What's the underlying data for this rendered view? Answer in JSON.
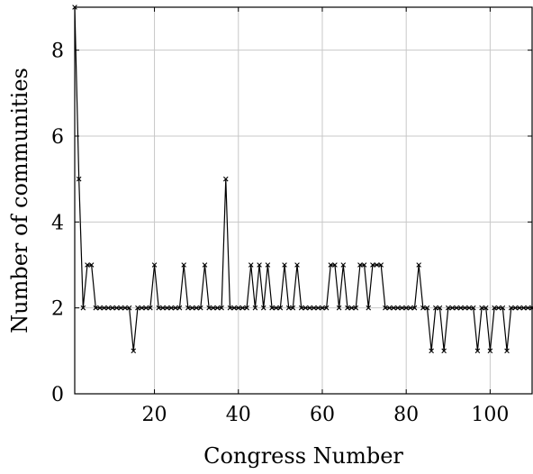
{
  "chart_data": {
    "type": "line",
    "title": "",
    "xlabel": "Congress Number",
    "ylabel": "Number of communities",
    "xlim": [
      1,
      110
    ],
    "ylim": [
      0,
      9
    ],
    "xticks": [
      20,
      40,
      60,
      80,
      100
    ],
    "yticks": [
      0,
      2,
      4,
      6,
      8
    ],
    "grid": true,
    "marker": "x",
    "x": [
      1,
      2,
      3,
      4,
      5,
      6,
      7,
      8,
      9,
      10,
      11,
      12,
      13,
      14,
      15,
      16,
      17,
      18,
      19,
      20,
      21,
      22,
      23,
      24,
      25,
      26,
      27,
      28,
      29,
      30,
      31,
      32,
      33,
      34,
      35,
      36,
      37,
      38,
      39,
      40,
      41,
      42,
      43,
      44,
      45,
      46,
      47,
      48,
      49,
      50,
      51,
      52,
      53,
      54,
      55,
      56,
      57,
      58,
      59,
      60,
      61,
      62,
      63,
      64,
      65,
      66,
      67,
      68,
      69,
      70,
      71,
      72,
      73,
      74,
      75,
      76,
      77,
      78,
      79,
      80,
      81,
      82,
      83,
      84,
      85,
      86,
      87,
      88,
      89,
      90,
      91,
      92,
      93,
      94,
      95,
      96,
      97,
      98,
      99,
      100,
      101,
      102,
      103,
      104,
      105,
      106,
      107,
      108,
      109,
      110
    ],
    "series": [
      {
        "values": [
          9,
          5,
          2,
          3,
          3,
          2,
          2,
          2,
          2,
          2,
          2,
          2,
          2,
          2,
          1,
          2,
          2,
          2,
          2,
          3,
          2,
          2,
          2,
          2,
          2,
          2,
          3,
          2,
          2,
          2,
          2,
          3,
          2,
          2,
          2,
          2,
          5,
          2,
          2,
          2,
          2,
          2,
          3,
          2,
          3,
          2,
          3,
          2,
          2,
          2,
          3,
          2,
          2,
          3,
          2,
          2,
          2,
          2,
          2,
          2,
          2,
          3,
          3,
          2,
          3,
          2,
          2,
          2,
          3,
          3,
          2,
          3,
          3,
          3,
          2,
          2,
          2,
          2,
          2,
          2,
          2,
          2,
          3,
          2,
          2,
          1,
          2,
          2,
          1,
          2,
          2,
          2,
          2,
          2,
          2,
          2,
          1,
          2,
          2,
          1,
          2,
          2,
          2,
          1,
          2,
          2,
          2,
          2,
          2,
          2
        ]
      }
    ]
  }
}
